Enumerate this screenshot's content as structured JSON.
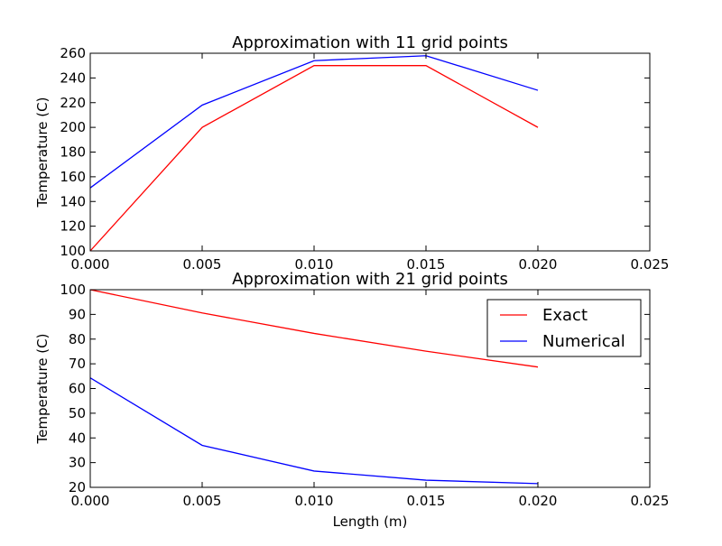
{
  "chart_data": [
    {
      "type": "line",
      "title": "Approximation with 11 grid points",
      "xlabel": "",
      "ylabel": "Temperature (C)",
      "xlim": [
        0.0,
        0.025
      ],
      "ylim": [
        100,
        260
      ],
      "xticks": [
        "0.000",
        "0.005",
        "0.010",
        "0.015",
        "0.020",
        "0.025"
      ],
      "yticks": [
        "100",
        "120",
        "140",
        "160",
        "180",
        "200",
        "220",
        "240",
        "260"
      ],
      "grid": false,
      "legend": false,
      "x": [
        0.0,
        0.005,
        0.01,
        0.015,
        0.02
      ],
      "series": [
        {
          "color": "#ff0000",
          "values": [
            100,
            200,
            250,
            250,
            200
          ]
        },
        {
          "color": "#0000ff",
          "values": [
            151,
            218,
            254,
            258,
            230
          ]
        }
      ]
    },
    {
      "type": "line",
      "title": "Approximation with 21 grid points",
      "xlabel": "Length (m)",
      "ylabel": "Temperature (C)",
      "xlim": [
        0.0,
        0.025
      ],
      "ylim": [
        20,
        100
      ],
      "xticks": [
        "0.000",
        "0.005",
        "0.010",
        "0.015",
        "0.020",
        "0.025"
      ],
      "yticks": [
        "20",
        "30",
        "40",
        "50",
        "60",
        "70",
        "80",
        "90",
        "100"
      ],
      "grid": false,
      "legend": true,
      "legend_position": "top-right",
      "x": [
        0.0,
        0.005,
        0.01,
        0.015,
        0.02
      ],
      "series": [
        {
          "name": "Exact",
          "color": "#ff0000",
          "values": [
            100,
            90.6,
            82.3,
            75.1,
            68.7
          ]
        },
        {
          "name": "Numerical",
          "color": "#0000ff",
          "values": [
            64.3,
            37.0,
            26.6,
            22.9,
            21.5
          ]
        }
      ]
    }
  ]
}
